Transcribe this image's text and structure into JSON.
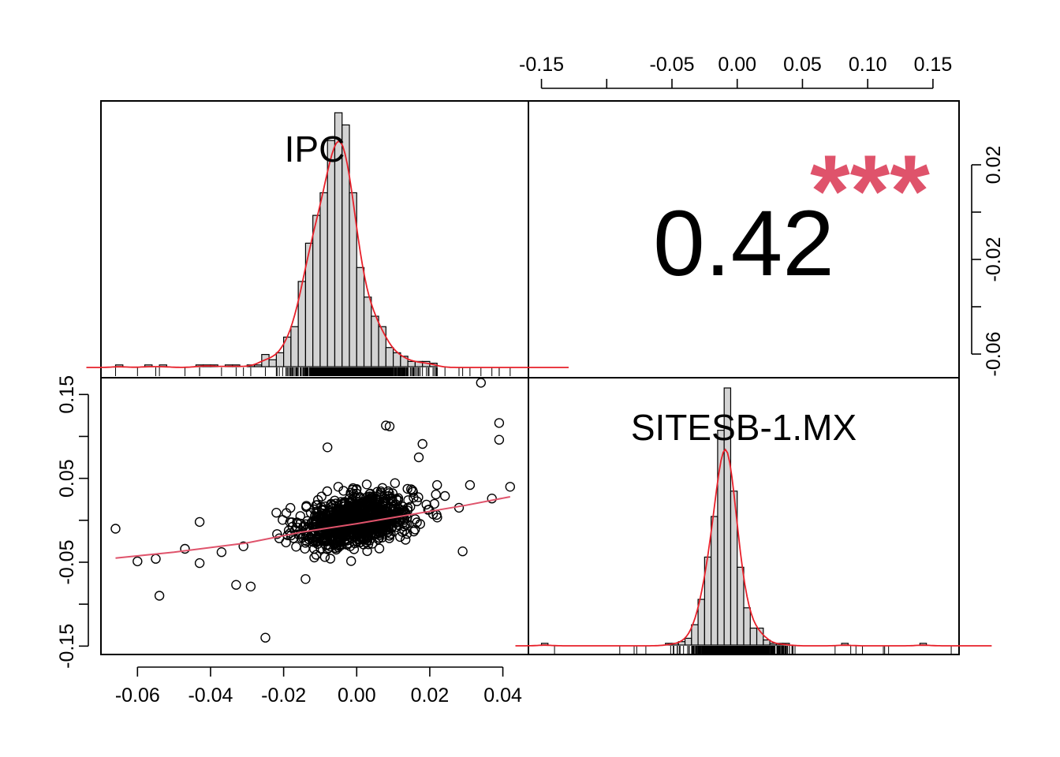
{
  "chart_data": {
    "type": "scatter",
    "variables": [
      "IPC",
      "SITESB-1.MX"
    ],
    "correlation": {
      "value": "0.42",
      "significance": "***",
      "stars_color": "#df536b"
    },
    "axes": {
      "bottom": {
        "ticks": [
          -0.06,
          -0.04,
          -0.02,
          0.0,
          0.02,
          0.04
        ],
        "labels": [
          "-0.06",
          "-0.04",
          "-0.02",
          "0.00",
          "0.02",
          "0.04"
        ],
        "range": [
          -0.07,
          0.047
        ]
      },
      "left": {
        "ticks": [
          -0.15,
          -0.05,
          0.05,
          0.15
        ],
        "labels": [
          "-0.15",
          "-0.05",
          "0.05",
          "0.15"
        ],
        "minor_ticks": [
          -0.1,
          0.0,
          0.1
        ],
        "range": [
          -0.16,
          0.17
        ]
      },
      "top": {
        "ticks": [
          -0.15,
          -0.05,
          0.0,
          0.05,
          0.1,
          0.15
        ],
        "labels": [
          "-0.15",
          "-0.05",
          "0.00",
          "0.05",
          "0.10",
          "0.15"
        ],
        "minor_ticks": [
          -0.1
        ],
        "range": [
          -0.16,
          0.17
        ]
      },
      "right": {
        "ticks": [
          -0.06,
          -0.02,
          0.02
        ],
        "labels": [
          "-0.06",
          "-0.02",
          "0.02"
        ],
        "minor_ticks": [
          -0.04,
          0.0
        ],
        "range": [
          -0.07,
          0.047
        ]
      }
    },
    "histograms": {
      "IPC": {
        "bin_start": -0.066,
        "bin_width": 0.002,
        "counts": [
          1,
          0,
          0,
          0,
          1,
          0,
          1,
          0,
          0,
          0,
          0,
          1,
          1,
          1,
          0,
          1,
          1,
          0,
          1,
          1,
          7,
          4,
          8,
          17,
          23,
          49,
          71,
          87,
          100,
          130,
          146,
          139,
          100,
          57,
          40,
          29,
          23,
          11,
          8,
          6,
          3,
          3,
          3,
          2,
          0,
          0,
          0,
          0,
          0,
          0,
          0,
          0,
          0,
          0,
          0,
          0,
          0,
          0,
          0
        ],
        "density_color": "#e8202a"
      },
      "SITESB-1.MX": {
        "bin_start": -0.15,
        "bin_width": 0.005,
        "counts": [
          1,
          0,
          0,
          0,
          0,
          0,
          0,
          0,
          0,
          0,
          0,
          0,
          0,
          0,
          0,
          0,
          0,
          0,
          0,
          1,
          1,
          2,
          4,
          12,
          27,
          52,
          76,
          127,
          152,
          91,
          46,
          22,
          10,
          10,
          3,
          1,
          1,
          1,
          0,
          0,
          0,
          0,
          0,
          0,
          0,
          0,
          1,
          0,
          0,
          0,
          0,
          0,
          0,
          0,
          0,
          0,
          0,
          0,
          1,
          0,
          0,
          0,
          0,
          0,
          0,
          0
        ],
        "density_color": "#e8202a"
      }
    },
    "scatter": {
      "xlabel": "IPC",
      "ylabel": "SITESB-1.MX",
      "notable_points": [
        [
          -0.066,
          -0.01
        ],
        [
          -0.06,
          -0.049
        ],
        [
          -0.055,
          -0.046
        ],
        [
          -0.054,
          -0.09
        ],
        [
          -0.047,
          -0.034
        ],
        [
          -0.043,
          -0.051
        ],
        [
          -0.043,
          -0.002
        ],
        [
          -0.037,
          -0.038
        ],
        [
          -0.033,
          -0.077
        ],
        [
          -0.031,
          -0.031
        ],
        [
          -0.029,
          -0.079
        ],
        [
          -0.025,
          -0.14
        ],
        [
          -0.022,
          0.009
        ],
        [
          -0.014,
          -0.07
        ],
        [
          -0.008,
          0.087
        ],
        [
          0.004,
          0.011
        ],
        [
          0.008,
          0.113
        ],
        [
          0.009,
          0.112
        ],
        [
          0.017,
          0.075
        ],
        [
          0.018,
          0.091
        ],
        [
          0.022,
          0.042
        ],
        [
          0.029,
          -0.037
        ],
        [
          0.031,
          0.042
        ],
        [
          0.034,
          0.164
        ],
        [
          0.039,
          0.116
        ],
        [
          0.039,
          0.096
        ],
        [
          0.042,
          0.04
        ],
        [
          0.037,
          0.026
        ],
        [
          0.028,
          0.015
        ]
      ],
      "cloud": {
        "n": 1000,
        "x_sd": 0.0075,
        "y_sd": 0.017
      },
      "smoother": {
        "x": [
          -0.066,
          -0.05,
          -0.03,
          -0.015,
          0.0,
          0.015,
          0.03,
          0.042
        ],
        "y": [
          -0.045,
          -0.038,
          -0.027,
          -0.014,
          -0.004,
          0.007,
          0.018,
          0.028
        ],
        "color": "#df536b"
      }
    }
  }
}
